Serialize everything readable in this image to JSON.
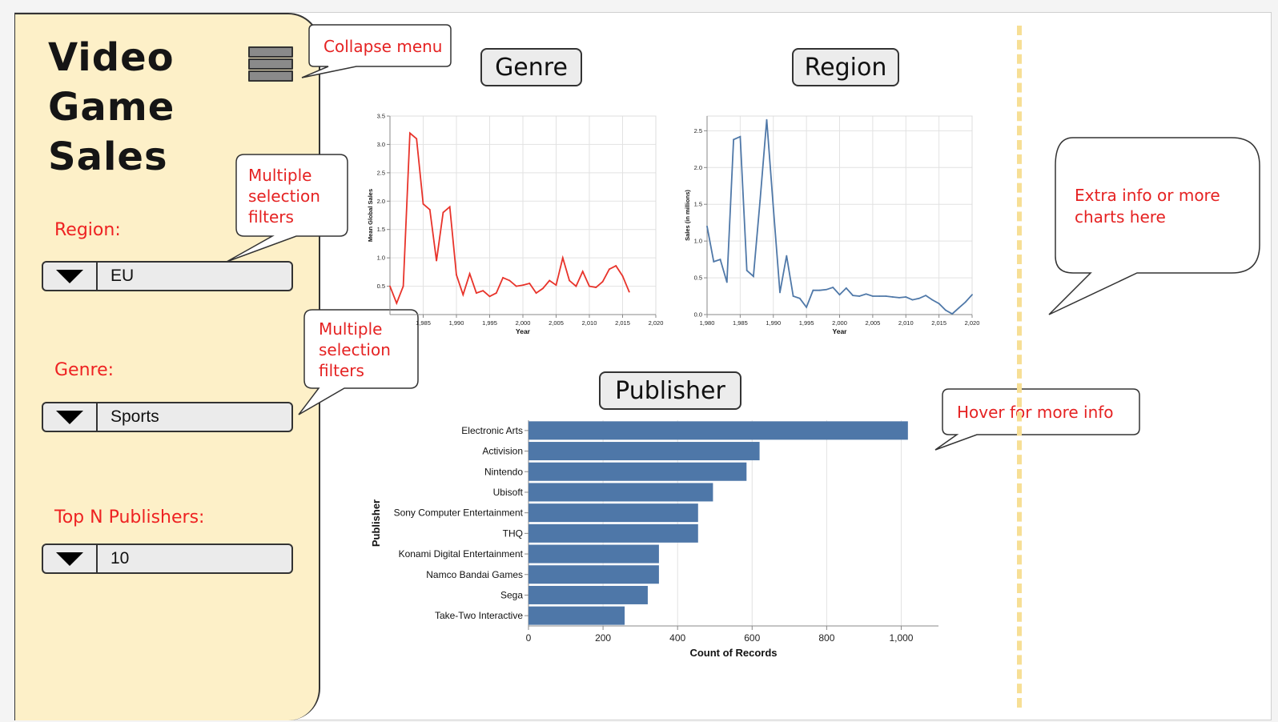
{
  "app": {
    "title_lines": [
      "Video",
      "Game",
      "Sales"
    ]
  },
  "sidebar": {
    "menu_icon": "hamburger-icon",
    "filters": [
      {
        "label": "Region:",
        "value": "EU"
      },
      {
        "label": "Genre:",
        "value": "Sports"
      },
      {
        "label": "Top N Publishers:",
        "value": "10"
      }
    ]
  },
  "annotations": {
    "collapse_menu": "Collapse menu",
    "multi_filter_1": [
      "Multiple",
      "selection",
      "filters"
    ],
    "multi_filter_2": [
      "Multiple",
      "selection",
      "filters"
    ],
    "extra_info": [
      "Extra info or more",
      "charts here"
    ],
    "hover_info": "Hover for more info"
  },
  "chart_titles": {
    "genre": "Genre",
    "region": "Region",
    "publisher": "Publisher"
  },
  "colors": {
    "sidebar_bg": "#fdf0c8",
    "genre_line": "#e8332a",
    "region_line": "#4f78a8",
    "bar": "#4e77a8",
    "annotation_text": "#e52222",
    "divider": "#f7df95"
  },
  "chart_data": [
    {
      "id": "genre",
      "type": "line",
      "xlabel": "Year",
      "ylabel": "Mean Global Sales",
      "xlim": [
        1980,
        2020
      ],
      "ylim": [
        0,
        3.5
      ],
      "x_ticks": [
        "1,985",
        "1,990",
        "1,995",
        "2,000",
        "2,005",
        "2,010",
        "2,015",
        "2,020"
      ],
      "y_ticks": [
        "0.5",
        "1.0",
        "1.5",
        "2.0",
        "2.5",
        "3.0",
        "3.5"
      ],
      "grid": true,
      "x": [
        1980,
        1981,
        1982,
        1983,
        1984,
        1985,
        1986,
        1987,
        1988,
        1989,
        1990,
        1991,
        1992,
        1993,
        1994,
        1995,
        1996,
        1997,
        1998,
        1999,
        2000,
        2001,
        2002,
        2003,
        2004,
        2005,
        2006,
        2007,
        2008,
        2009,
        2010,
        2011,
        2012,
        2013,
        2014,
        2015,
        2016
      ],
      "values": [
        0.5,
        0.2,
        0.5,
        3.2,
        3.1,
        1.95,
        1.85,
        0.95,
        1.8,
        1.9,
        0.7,
        0.35,
        0.72,
        0.38,
        0.42,
        0.32,
        0.38,
        0.65,
        0.6,
        0.5,
        0.52,
        0.55,
        0.38,
        0.46,
        0.6,
        0.52,
        1.0,
        0.6,
        0.5,
        0.76,
        0.5,
        0.48,
        0.58,
        0.8,
        0.86,
        0.68,
        0.4
      ]
    },
    {
      "id": "region",
      "type": "line",
      "xlabel": "Year",
      "ylabel": "Sales (in millions)",
      "xlim": [
        1980,
        2020
      ],
      "ylim": [
        0,
        2.7
      ],
      "x_ticks": [
        "1,980",
        "1,985",
        "1,990",
        "1,995",
        "2,000",
        "2,005",
        "2,010",
        "2,015",
        "2,020"
      ],
      "y_ticks": [
        "0.0",
        "0.5",
        "1.0",
        "1.5",
        "2.0",
        "2.5"
      ],
      "grid": true,
      "x": [
        1980,
        1981,
        1982,
        1983,
        1984,
        1985,
        1986,
        1987,
        1988,
        1989,
        1990,
        1991,
        1992,
        1993,
        1994,
        1995,
        1996,
        1997,
        1998,
        1999,
        2000,
        2001,
        2002,
        2003,
        2004,
        2005,
        2006,
        2007,
        2008,
        2009,
        2010,
        2011,
        2012,
        2013,
        2014,
        2015,
        2016,
        2017,
        2018,
        2019,
        2020
      ],
      "values": [
        1.2,
        0.72,
        0.75,
        0.44,
        2.38,
        2.42,
        0.6,
        0.52,
        1.55,
        2.65,
        1.45,
        0.3,
        0.8,
        0.25,
        0.22,
        0.1,
        0.33,
        0.33,
        0.34,
        0.37,
        0.27,
        0.36,
        0.26,
        0.25,
        0.28,
        0.25,
        0.25,
        0.25,
        0.24,
        0.23,
        0.24,
        0.2,
        0.22,
        0.26,
        0.2,
        0.15,
        0.06,
        0.01,
        0.09,
        0.17,
        0.27
      ]
    },
    {
      "id": "publisher",
      "type": "bar",
      "orientation": "horizontal",
      "xlabel": "Count of Records",
      "ylabel": "Publisher",
      "xlim": [
        0,
        1100
      ],
      "x_ticks": [
        "0",
        "200",
        "400",
        "600",
        "800",
        "1,000"
      ],
      "grid": true,
      "categories": [
        "Electronic Arts",
        "Activision",
        "Nintendo",
        "Ubisoft",
        "Sony Computer Entertainment",
        "THQ",
        "Konami Digital Entertainment",
        "Namco Bandai Games",
        "Sega",
        "Take-Two Interactive"
      ],
      "values": [
        1018,
        620,
        585,
        495,
        455,
        455,
        350,
        350,
        320,
        258
      ]
    }
  ]
}
